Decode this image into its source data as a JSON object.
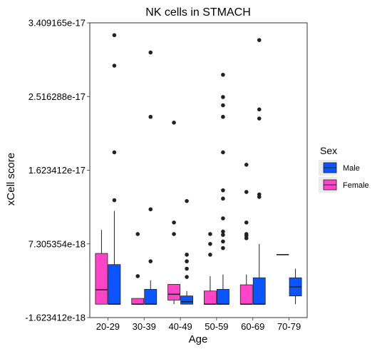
{
  "chart_data": {
    "type": "boxplot",
    "title": "NK cells in STMACH",
    "xlabel": "Age",
    "ylabel": "xCell score",
    "ylim": [
      -1.623412e-18,
      3.409165e-17
    ],
    "yticks": [
      -1.623412e-18,
      7.305354e-18,
      1.623412e-17,
      2.516288e-17,
      3.409165e-17
    ],
    "ytick_labels": [
      "-1.623412e-18",
      "7.305354e-18",
      "1.623412e-17",
      "2.516288e-17",
      "3.409165e-17"
    ],
    "categories": [
      "20-29",
      "30-39",
      "40-49",
      "50-59",
      "60-69",
      "70-79"
    ],
    "grid": false,
    "legend_position": "right",
    "legend": {
      "title": "Sex",
      "entries": [
        {
          "name": "Male",
          "color": "#0a55ff"
        },
        {
          "name": "Female",
          "color": "#ff44c7"
        }
      ]
    },
    "series": [
      {
        "name": "Female",
        "color": "#ff44c7",
        "boxes": [
          {
            "category": "20-29",
            "whisker_low": 0.0,
            "q1": 0.0,
            "median": 1.75e-18,
            "q3": 6.15e-18,
            "whisker_high": 9e-18,
            "outliers": []
          },
          {
            "category": "30-39",
            "whisker_low": 0.0,
            "q1": 0.0,
            "median": 0.0,
            "q3": 7e-19,
            "whisker_high": 7e-19,
            "outliers": [
              3.4e-18,
              8.5e-18
            ]
          },
          {
            "category": "40-49",
            "whisker_low": 0.0,
            "q1": 5e-19,
            "median": 1.2e-18,
            "q3": 2.4e-18,
            "whisker_high": 2.4e-18,
            "outliers": [
              8.5e-18,
              9.9e-18,
              2.2e-17
            ]
          },
          {
            "category": "50-59",
            "whisker_low": 0.0,
            "q1": 0.0,
            "median": 0.0,
            "q3": 1.6e-18,
            "whisker_high": 3.4e-18,
            "outliers": [
              6e-18,
              7.3e-18,
              8.5e-18
            ]
          },
          {
            "category": "60-69",
            "whisker_low": 0.0,
            "q1": 0.0,
            "median": 0.0,
            "q3": 2.35e-18,
            "whisker_high": 3.6e-18,
            "outliers": [
              8e-18,
              8.3e-18,
              8.5e-18,
              9.9e-18,
              1.36e-17,
              1.69e-17
            ]
          },
          {
            "category": "70-79",
            "whisker_low": 6e-18,
            "q1": 6e-18,
            "median": 6e-18,
            "q3": 6e-18,
            "whisker_high": 6e-18,
            "outliers": []
          }
        ]
      },
      {
        "name": "Male",
        "color": "#0a55ff",
        "boxes": [
          {
            "category": "20-29",
            "whisker_low": 0.0,
            "q1": 0.0,
            "median": 0.0,
            "q3": 4.8e-18,
            "whisker_high": 1.13e-17,
            "outliers": [
              1.26e-17,
              1.84e-17,
              2.89e-17,
              3.26e-17
            ]
          },
          {
            "category": "30-39",
            "whisker_low": 0.0,
            "q1": 0.0,
            "median": 0.0,
            "q3": 1.8e-18,
            "whisker_high": 2.9e-18,
            "outliers": [
              5.2e-18,
              1.15e-17,
              2.27e-17,
              3.05e-17
            ]
          },
          {
            "category": "40-49",
            "whisker_low": 0.0,
            "q1": 0.0,
            "median": 3e-19,
            "q3": 1e-18,
            "whisker_high": 1.6e-18,
            "outliers": [
              3.3e-18,
              4.3e-18,
              5.2e-18,
              6e-18,
              1.25e-17
            ]
          },
          {
            "category": "50-59",
            "whisker_low": 0.0,
            "q1": 0.0,
            "median": 0.0,
            "q3": 1.8e-18,
            "whisker_high": 3.6e-18,
            "outliers": [
              6.8e-18,
              7.6e-18,
              8.4e-18,
              8.8e-18,
              1.04e-17,
              1.28e-17,
              1.38e-17,
              1.84e-17,
              2.27e-17,
              2.41e-17,
              2.51e-17,
              2.78e-17
            ]
          },
          {
            "category": "60-69",
            "whisker_low": 0.0,
            "q1": 0.0,
            "median": 0.0,
            "q3": 3.2e-18,
            "whisker_high": 7.3e-18,
            "outliers": [
              1.3e-17,
              1.33e-17,
              2.25e-17,
              2.36e-17,
              3.2e-17
            ]
          },
          {
            "category": "70-79",
            "whisker_low": 0.0,
            "q1": 1e-18,
            "median": 2.1e-18,
            "q3": 3.2e-18,
            "whisker_high": 4.3e-18,
            "outliers": []
          }
        ]
      }
    ]
  }
}
